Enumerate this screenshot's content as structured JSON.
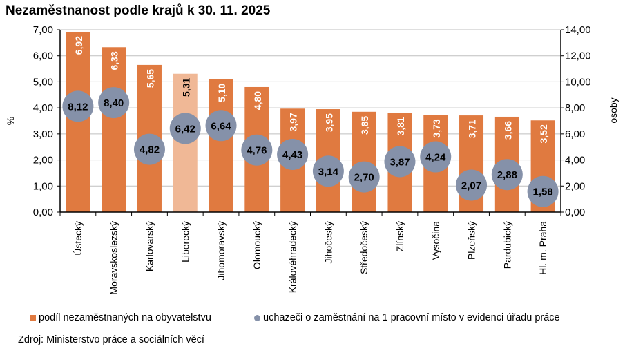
{
  "chart_data": {
    "type": "bar",
    "title": "Nezaměstnanost podle krajů k 30. 11. 2025",
    "categories": [
      "Ústecký",
      "Moravskoslezský",
      "Karlovarský",
      "Liberecký",
      "Jihomoravský",
      "Olomoucký",
      "Královéhradecký",
      "Jihočeský",
      "Středočeský",
      "Zlínský",
      "Vysočina",
      "Plzeňský",
      "Pardubický",
      "Hl. m. Praha"
    ],
    "series": [
      {
        "name": "podíl nezaměstnaných na obyvatelstvu",
        "axis": "left",
        "kind": "bar",
        "values": [
          6.92,
          6.33,
          5.65,
          5.31,
          5.1,
          4.8,
          3.97,
          3.95,
          3.85,
          3.81,
          3.73,
          3.71,
          3.66,
          3.52
        ],
        "labels": [
          "6,92",
          "6,33",
          "5,65",
          "5,31",
          "5,10",
          "4,80",
          "3,97",
          "3,95",
          "3,85",
          "3,81",
          "3,73",
          "3,71",
          "3,66",
          "3,52"
        ]
      },
      {
        "name": "uchazeči o zaměstnání na 1 pracovní místo v evidenci úřadu práce",
        "axis": "right",
        "kind": "bubble",
        "values": [
          8.12,
          8.4,
          4.82,
          6.42,
          6.64,
          4.76,
          4.43,
          3.14,
          2.7,
          3.87,
          4.24,
          2.07,
          2.88,
          1.58
        ],
        "labels": [
          "8,12",
          "8,40",
          "4,82",
          "6,42",
          "6,64",
          "4,76",
          "4,43",
          "3,14",
          "2,70",
          "3,87",
          "4,24",
          "2,07",
          "2,88",
          "1,58"
        ]
      }
    ],
    "highlight_category": "Liberecký",
    "ylabel": "%",
    "y2label": "osoby",
    "ylim": [
      0,
      7
    ],
    "y2lim": [
      0,
      14
    ],
    "yticks": [
      "0,00",
      "1,00",
      "2,00",
      "3,00",
      "4,00",
      "5,00",
      "6,00",
      "7,00"
    ],
    "y2ticks": [
      "0,00",
      "2,00",
      "4,00",
      "6,00",
      "8,00",
      "10,00",
      "12,00",
      "14,00"
    ],
    "grid": true,
    "legend_position": "bottom",
    "colors": {
      "bar": "#E07A40",
      "bar_highlight": "#F0B896",
      "bubble": "#8591A9"
    }
  },
  "source": "Zdroj: Ministerstvo  práce a sociálních věcí"
}
